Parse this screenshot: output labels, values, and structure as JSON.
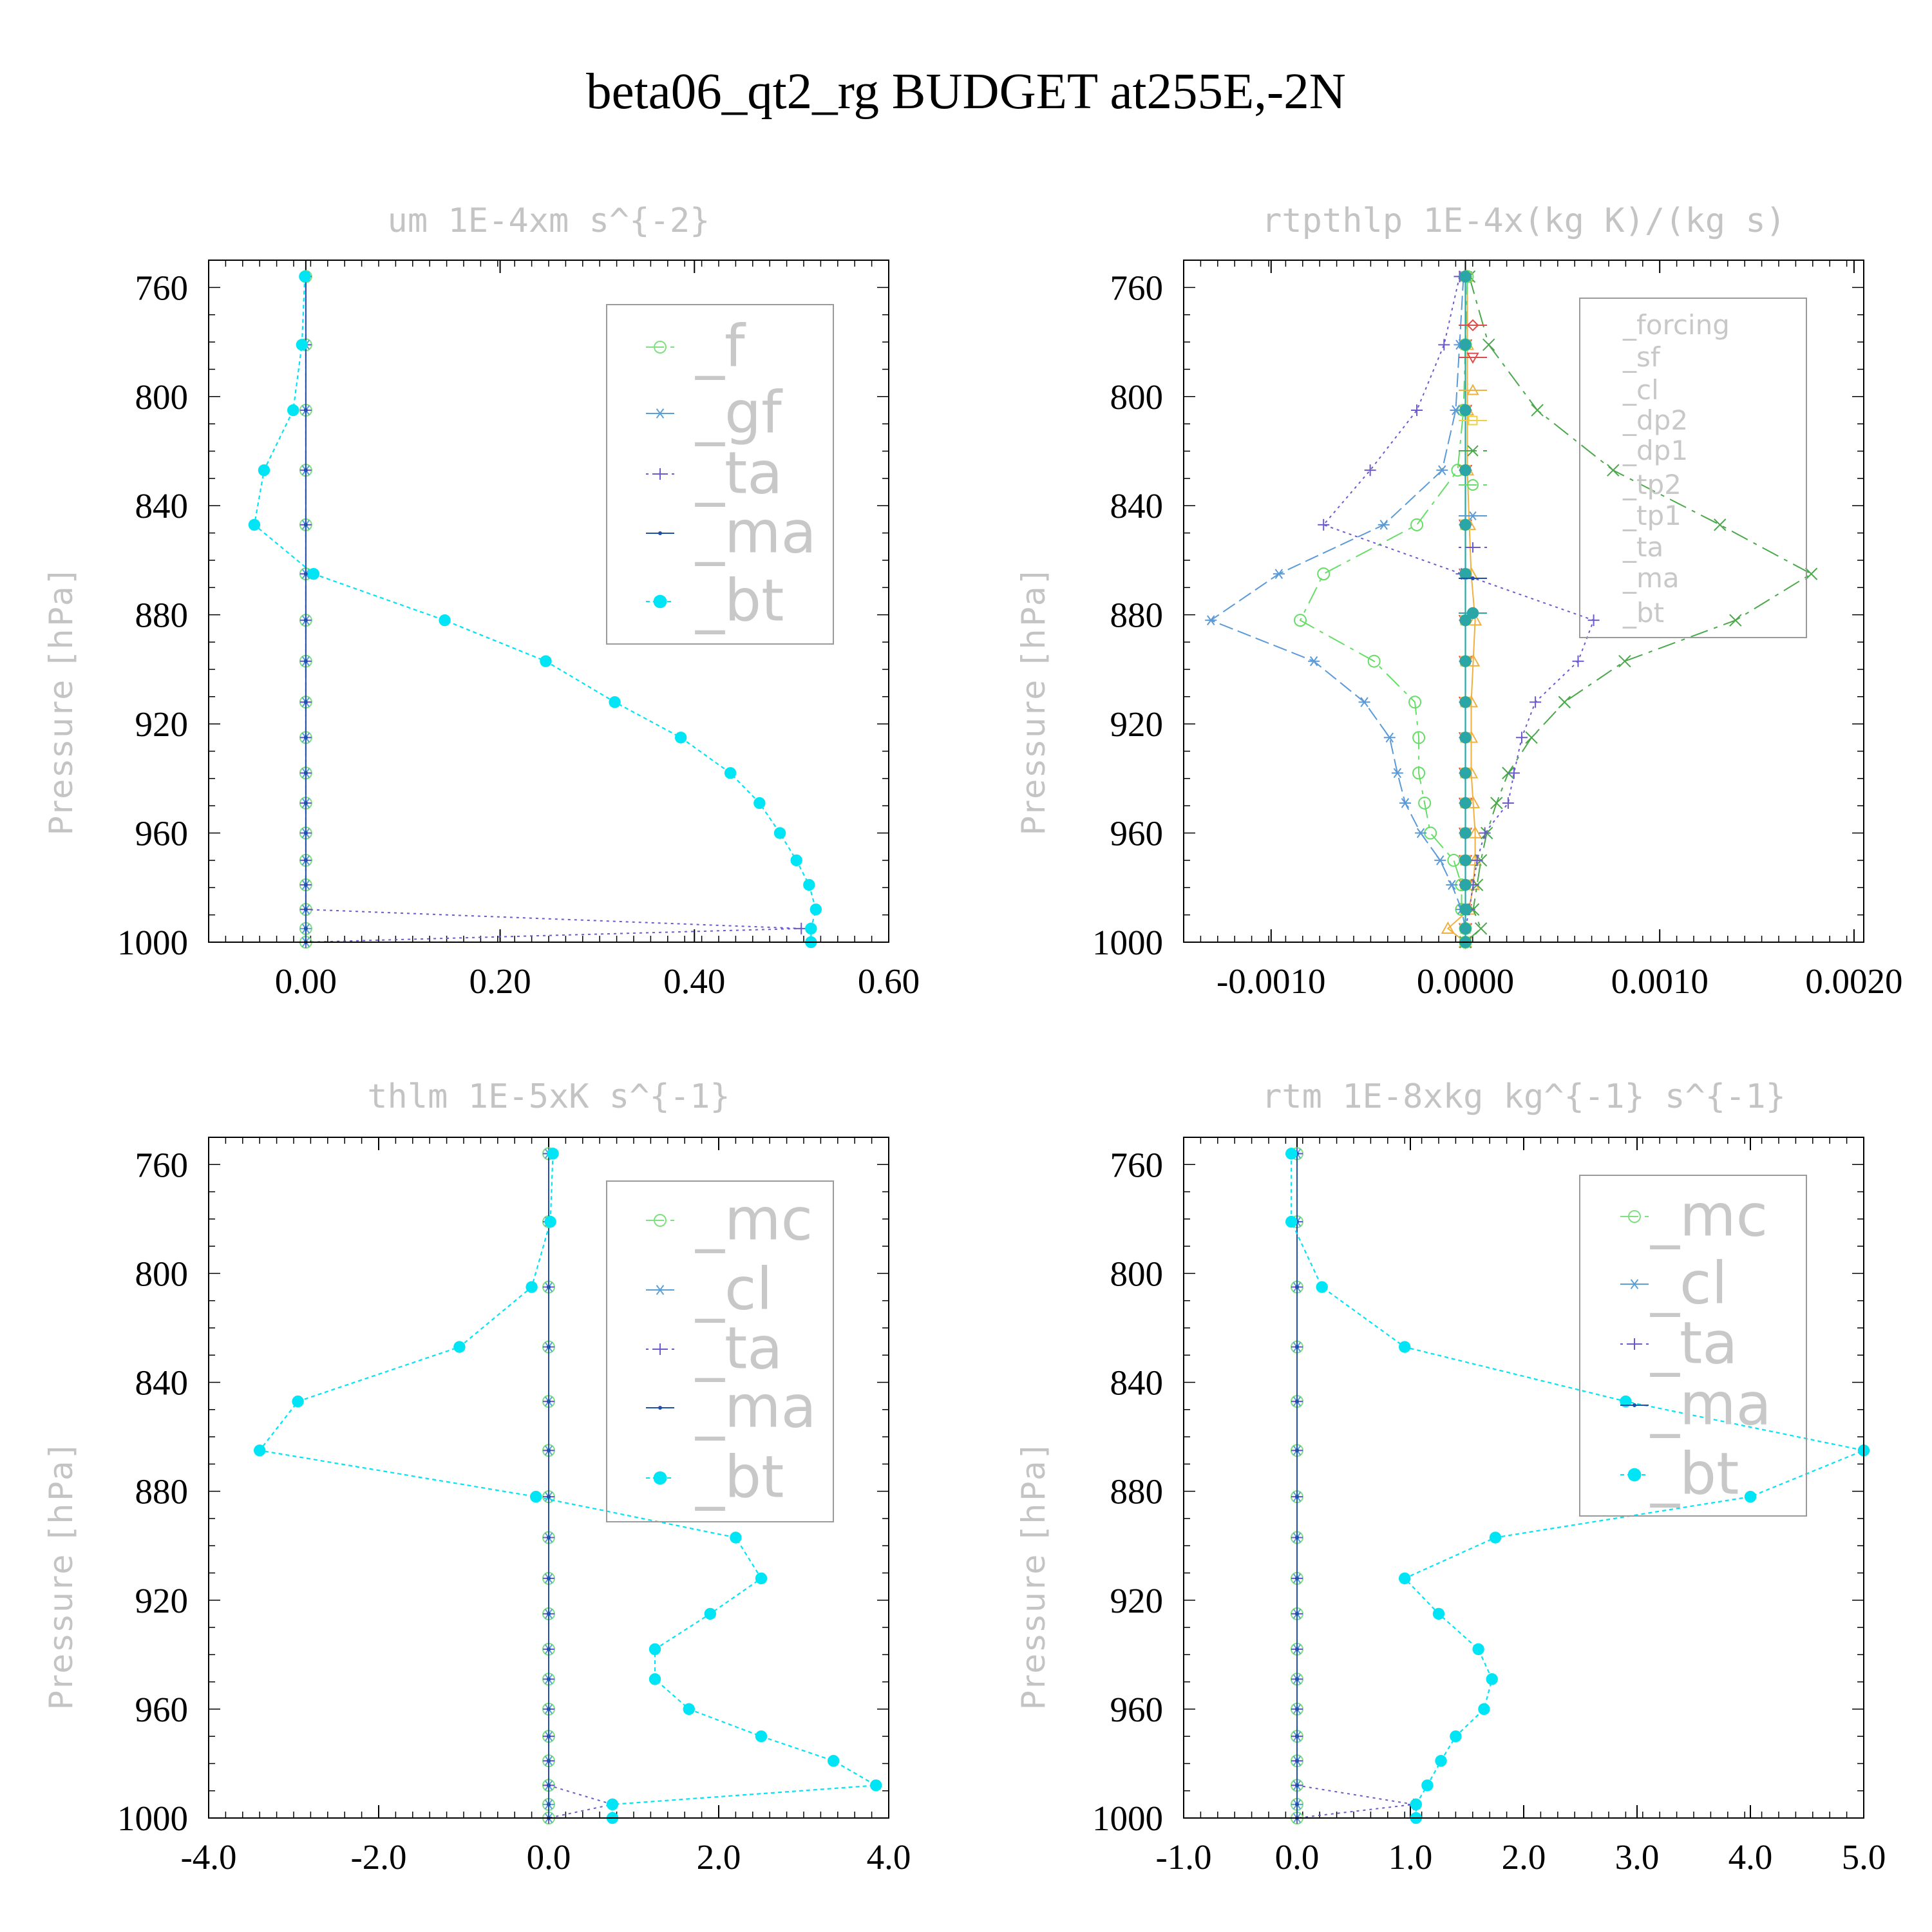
{
  "title": "beta06_qt2_rg  BUDGET at255E,-2N",
  "chart_data": [
    {
      "type": "line",
      "title": "um  1E-4xm s^{-2}",
      "ylabel": "Pressure [hPa]",
      "xlim": [
        -0.1,
        0.6
      ],
      "ylim": [
        1000,
        750
      ],
      "xticks": [
        "0.00",
        "0.20",
        "0.40",
        "0.60"
      ],
      "xtick_values": [
        0.0,
        0.2,
        0.4,
        0.6
      ],
      "yticks": [
        "760",
        "800",
        "840",
        "880",
        "920",
        "960",
        "1000"
      ],
      "legend_font": 90,
      "y": [
        756,
        781,
        805,
        827,
        847,
        865,
        882,
        897,
        912,
        925,
        938,
        949,
        960,
        970,
        979,
        988,
        995,
        1000
      ],
      "series": [
        {
          "name": "_f",
          "color": "#7ee07e",
          "marker": "circle",
          "dash": "28,10,6,10",
          "values": [
            0,
            0,
            0,
            0,
            0,
            0,
            0,
            0,
            0,
            0,
            0,
            0,
            0,
            0,
            0,
            0,
            0,
            0
          ]
        },
        {
          "name": "_gf",
          "color": "#5aa0d8",
          "marker": "star",
          "dash": "22,8",
          "values": [
            0,
            0,
            0,
            0,
            0,
            0,
            0,
            0,
            0,
            0,
            0,
            0,
            0,
            0,
            0,
            0,
            0,
            0
          ]
        },
        {
          "name": "_ta",
          "color": "#6a5acd",
          "marker": "plus",
          "dash": "4,6",
          "values": [
            0,
            0,
            0,
            0,
            0,
            0,
            0,
            0,
            0,
            0,
            0,
            0,
            0,
            0,
            0,
            0,
            0.51,
            0
          ]
        },
        {
          "name": "_ma",
          "color": "#1f4fa8",
          "marker": "dot",
          "dash": "",
          "values": [
            0,
            0,
            0,
            0,
            0,
            0,
            0,
            0,
            0,
            0,
            0,
            0,
            0,
            0,
            0,
            0,
            0,
            0
          ]
        },
        {
          "name": "_bt",
          "color": "#00e5f5",
          "marker": "filled",
          "dash": "6,5",
          "values": [
            -0.001,
            -0.004,
            -0.013,
            -0.043,
            -0.053,
            0.008,
            0.143,
            0.247,
            0.318,
            0.386,
            0.437,
            0.467,
            0.488,
            0.505,
            0.518,
            0.525,
            0.52,
            0.52
          ]
        }
      ]
    },
    {
      "type": "line",
      "title": "rtpthlp  1E-4x(kg K)/(kg s)",
      "ylabel": "Pressure [hPa]",
      "xlim": [
        -0.00145,
        0.00205
      ],
      "ylim": [
        1000,
        750
      ],
      "xticks": [
        "-0.0010",
        "0.0000",
        "0.0010",
        "0.0020"
      ],
      "xtick_values": [
        -0.001,
        0.0,
        0.001,
        0.002
      ],
      "yticks": [
        "760",
        "800",
        "840",
        "880",
        "920",
        "960",
        "1000"
      ],
      "legend_font": 42,
      "y": [
        756,
        781,
        805,
        827,
        847,
        865,
        882,
        897,
        912,
        925,
        938,
        949,
        960,
        970,
        979,
        988,
        995,
        1000
      ],
      "series": [
        {
          "name": "_forcing",
          "color": "#e04a4a",
          "marker": "diamond",
          "dash": "",
          "values": [
            0,
            0,
            0,
            0,
            0,
            0,
            0,
            0,
            0,
            0,
            0,
            0,
            0,
            0,
            0,
            0,
            0,
            0
          ]
        },
        {
          "name": "_sf",
          "color": "#e04a4a",
          "marker": "tridown",
          "dash": "",
          "values": [
            0,
            0,
            0,
            0,
            0,
            0,
            0,
            0,
            0,
            0,
            0,
            0,
            0,
            0,
            0,
            0,
            0,
            0
          ]
        },
        {
          "name": "_cl",
          "color": "#f0b040",
          "marker": "triup",
          "dash": "",
          "values": [
            1e-05,
            1e-05,
            1e-05,
            1e-05,
            2e-05,
            3e-05,
            5e-05,
            4e-05,
            3e-05,
            3e-05,
            3e-05,
            4e-05,
            5e-05,
            5e-05,
            4e-05,
            2e-05,
            -9e-05,
            0
          ]
        },
        {
          "name": "_dp2",
          "color": "#f0d040",
          "marker": "square",
          "dash": "",
          "values": [
            0,
            0,
            0,
            0,
            0,
            0,
            0,
            0,
            0,
            0,
            0,
            0,
            0,
            0,
            0,
            0,
            0,
            0
          ]
        },
        {
          "name": "_dp1",
          "color": "#4aa84a",
          "marker": "cross",
          "dash": "28,10,6,10",
          "values": [
            2e-05,
            0.00012,
            0.00037,
            0.00076,
            0.00131,
            0.00178,
            0.00139,
            0.00082,
            0.00051,
            0.00034,
            0.00022,
            0.00016,
            0.00011,
            8e-05,
            6e-05,
            4e-05,
            8e-05,
            0
          ]
        },
        {
          "name": "_tp2",
          "color": "#66dd66",
          "marker": "circle",
          "dash": "28,10,6,10",
          "values": [
            1e-05,
            0,
            -1e-05,
            -4e-05,
            -0.00025,
            -0.00073,
            -0.00085,
            -0.00047,
            -0.00026,
            -0.00024,
            -0.00024,
            -0.00021,
            -0.00018,
            -6e-05,
            -2e-05,
            -2e-05,
            0,
            0
          ]
        },
        {
          "name": "_tp1",
          "color": "#5a9ad8",
          "marker": "star",
          "dash": "22,8",
          "values": [
            -1e-05,
            -3e-05,
            -5e-05,
            -0.00012,
            -0.00042,
            -0.00096,
            -0.00131,
            -0.00078,
            -0.00052,
            -0.00039,
            -0.00035,
            -0.00031,
            -0.00023,
            -0.00013,
            -7e-05,
            -2e-05,
            0,
            0
          ]
        },
        {
          "name": "_ta",
          "color": "#6a5acd",
          "marker": "plus",
          "dash": "4,6",
          "values": [
            -3e-05,
            -0.00011,
            -0.00025,
            -0.00049,
            -0.00073,
            -2e-05,
            0.00066,
            0.00058,
            0.00036,
            0.00029,
            0.00025,
            0.00022,
            0.0001,
            6e-05,
            4e-05,
            2e-05,
            0,
            0
          ]
        },
        {
          "name": "_ma",
          "color": "#1f4fa8",
          "marker": "dot",
          "dash": "",
          "values": [
            0,
            0,
            0,
            0,
            0,
            0,
            0,
            0,
            0,
            0,
            0,
            0,
            0,
            0,
            0,
            0,
            0,
            0
          ]
        },
        {
          "name": "_bt",
          "color": "#2aa6a6",
          "marker": "filled",
          "dash": "",
          "values": [
            0,
            0,
            0,
            0,
            0,
            0,
            0,
            0,
            0,
            0,
            0,
            0,
            0,
            0,
            0,
            0,
            0,
            0
          ]
        }
      ]
    },
    {
      "type": "line",
      "title": "thlm  1E-5xK s^{-1}",
      "ylabel": "Pressure [hPa]",
      "xlim": [
        -4.0,
        4.0
      ],
      "ylim": [
        1000,
        750
      ],
      "xticks": [
        "-4.0",
        "-2.0",
        "0.0",
        "2.0",
        "4.0"
      ],
      "xtick_values": [
        -4.0,
        -2.0,
        0.0,
        2.0,
        4.0
      ],
      "yticks": [
        "760",
        "800",
        "840",
        "880",
        "920",
        "960",
        "1000"
      ],
      "legend_font": 90,
      "y": [
        756,
        781,
        805,
        827,
        847,
        865,
        882,
        897,
        912,
        925,
        938,
        949,
        960,
        970,
        979,
        988,
        995,
        1000
      ],
      "series": [
        {
          "name": "_mc",
          "color": "#7ee07e",
          "marker": "circle",
          "dash": "28,10,6,10",
          "values": [
            0,
            0,
            0,
            0,
            0,
            0,
            0,
            0,
            0,
            0,
            0,
            0,
            0,
            0,
            0,
            0,
            0,
            0
          ]
        },
        {
          "name": "_cl",
          "color": "#5aa0d8",
          "marker": "star",
          "dash": "22,8",
          "values": [
            0,
            0,
            0,
            0,
            0,
            0,
            0,
            0,
            0,
            0,
            0,
            0,
            0,
            0,
            0,
            0,
            0,
            0
          ]
        },
        {
          "name": "_ta",
          "color": "#6a5acd",
          "marker": "plus",
          "dash": "4,6",
          "values": [
            0,
            0,
            0,
            0,
            0,
            0,
            0,
            0,
            0,
            0,
            0,
            0,
            0,
            0,
            0,
            0,
            0.75,
            0
          ]
        },
        {
          "name": "_ma",
          "color": "#1f4fa8",
          "marker": "dot",
          "dash": "",
          "values": [
            0,
            0,
            0,
            0,
            0,
            0,
            0,
            0,
            0,
            0,
            0,
            0,
            0,
            0,
            0,
            0,
            0,
            0
          ]
        },
        {
          "name": "_bt",
          "color": "#00e5f5",
          "marker": "filled",
          "dash": "6,5",
          "values": [
            0.05,
            0.02,
            -0.2,
            -1.05,
            -2.95,
            -3.4,
            -0.15,
            2.2,
            2.5,
            1.9,
            1.25,
            1.25,
            1.65,
            2.5,
            3.35,
            3.85,
            0.75,
            0.75
          ]
        }
      ]
    },
    {
      "type": "line",
      "title": "rtm  1E-8xkg kg^{-1} s^{-1}",
      "ylabel": "Pressure [hPa]",
      "xlim": [
        -1.0,
        5.0
      ],
      "ylim": [
        1000,
        750
      ],
      "xticks": [
        "-1.0",
        "0.0",
        "1.0",
        "2.0",
        "3.0",
        "4.0",
        "5.0"
      ],
      "xtick_values": [
        -1.0,
        0.0,
        1.0,
        2.0,
        3.0,
        4.0,
        5.0
      ],
      "yticks": [
        "760",
        "800",
        "840",
        "880",
        "920",
        "960",
        "1000"
      ],
      "legend_font": 90,
      "y": [
        756,
        781,
        805,
        827,
        847,
        865,
        882,
        897,
        912,
        925,
        938,
        949,
        960,
        970,
        979,
        988,
        995,
        1000
      ],
      "series": [
        {
          "name": "_mc",
          "color": "#7ee07e",
          "marker": "circle",
          "dash": "28,10,6,10",
          "values": [
            0,
            0,
            0,
            0,
            0,
            0,
            0,
            0,
            0,
            0,
            0,
            0,
            0,
            0,
            0,
            0,
            0,
            0
          ]
        },
        {
          "name": "_cl",
          "color": "#5aa0d8",
          "marker": "star",
          "dash": "22,8",
          "values": [
            0,
            0,
            0,
            0,
            0,
            0,
            0,
            0,
            0,
            0,
            0,
            0,
            0,
            0,
            0,
            0,
            0,
            0
          ]
        },
        {
          "name": "_ta",
          "color": "#6a5acd",
          "marker": "plus",
          "dash": "4,6",
          "values": [
            0,
            0,
            0,
            0,
            0,
            0,
            0,
            0,
            0,
            0,
            0,
            0,
            0,
            0,
            0,
            0,
            1.03,
            0
          ]
        },
        {
          "name": "_ma",
          "color": "#1f4fa8",
          "marker": "dot",
          "dash": "",
          "values": [
            0,
            0,
            0,
            0,
            0,
            0,
            0,
            0,
            0,
            0,
            0,
            0,
            0,
            0,
            0,
            0,
            0,
            0
          ]
        },
        {
          "name": "_bt",
          "color": "#00e5f5",
          "marker": "filled",
          "dash": "6,5",
          "values": [
            -0.05,
            -0.05,
            0.22,
            0.95,
            2.9,
            5.0,
            4.0,
            1.75,
            0.95,
            1.25,
            1.6,
            1.72,
            1.65,
            1.4,
            1.27,
            1.15,
            1.05,
            1.05
          ]
        }
      ]
    }
  ]
}
